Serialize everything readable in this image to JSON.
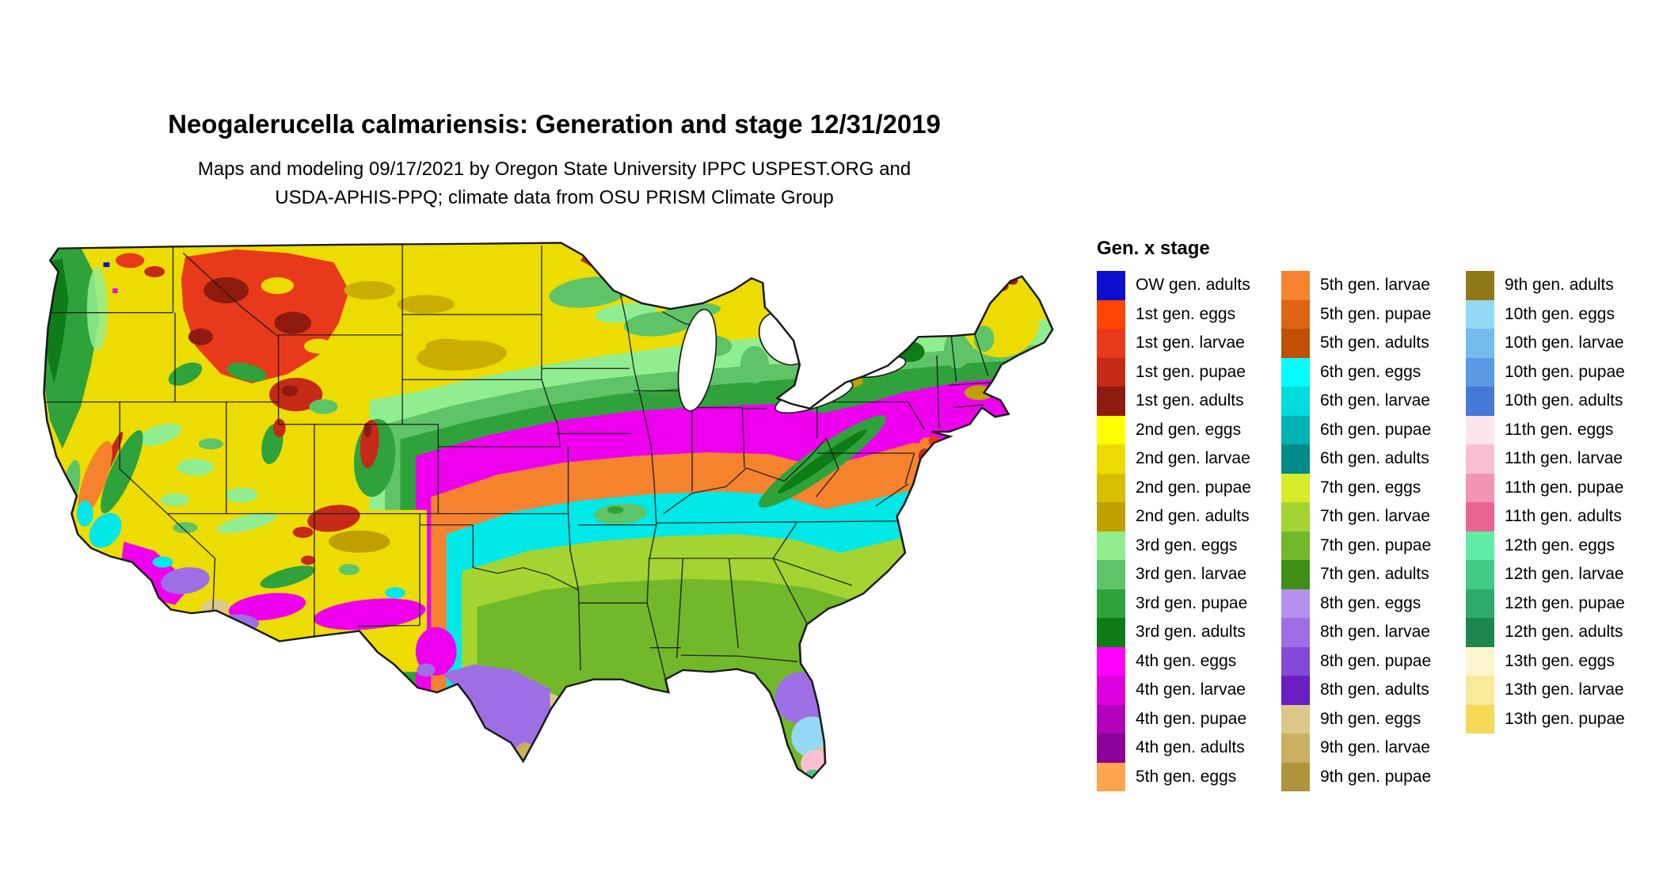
{
  "title": "Neogalerucella calmariensis: Generation and stage 12/31/2019",
  "subtitle_line1": "Maps and modeling 09/17/2021 by Oregon State University IPPC USPEST.ORG and",
  "subtitle_line2": "USDA-APHIS-PPQ; climate data from OSU PRISM Climate Group",
  "legend": {
    "title": "Gen. x stage",
    "columns": [
      {
        "entries": [
          {
            "label": "OW gen. adults",
            "color": "#0D0DCE"
          },
          {
            "label": "1st gen. eggs",
            "color": "#FF4500"
          },
          {
            "label": "1st gen. larvae",
            "color": "#E8391B"
          },
          {
            "label": "1st gen. pupae",
            "color": "#C52A16"
          },
          {
            "label": "1st gen. adults",
            "color": "#8F1A10"
          },
          {
            "label": "2nd gen. eggs",
            "color": "#FFFF00"
          },
          {
            "label": "2nd gen. larvae",
            "color": "#EDDC00"
          },
          {
            "label": "2nd gen. pupae",
            "color": "#D8BE00"
          },
          {
            "label": "2nd gen. adults",
            "color": "#C0A000"
          },
          {
            "label": "3rd gen. eggs",
            "color": "#90EE90"
          },
          {
            "label": "3rd gen. larvae",
            "color": "#5FC468"
          },
          {
            "label": "3rd gen. pupae",
            "color": "#2FA23C"
          },
          {
            "label": "3rd gen. adults",
            "color": "#0E7D18"
          },
          {
            "label": "4th gen. eggs",
            "color": "#FF00FF"
          },
          {
            "label": "4th gen. larvae",
            "color": "#DD00DD"
          },
          {
            "label": "4th gen. pupae",
            "color": "#B300BB"
          },
          {
            "label": "4th gen. adults",
            "color": "#8B0096"
          },
          {
            "label": "5th gen. eggs",
            "color": "#FFA54F"
          }
        ]
      },
      {
        "entries": [
          {
            "label": "5th gen. larvae",
            "color": "#F5832E"
          },
          {
            "label": "5th gen. pupae",
            "color": "#DE6414"
          },
          {
            "label": "5th gen. adults",
            "color": "#C14E05"
          },
          {
            "label": "6th gen. eggs",
            "color": "#00FFFF"
          },
          {
            "label": "6th gen. larvae",
            "color": "#00DBDB"
          },
          {
            "label": "6th gen. pupae",
            "color": "#00B3B3"
          },
          {
            "label": "6th gen. adults",
            "color": "#008B8B"
          },
          {
            "label": "7th gen. eggs",
            "color": "#D6EC2A"
          },
          {
            "label": "7th gen. larvae",
            "color": "#A3D432"
          },
          {
            "label": "7th gen. pupae",
            "color": "#71B82A"
          },
          {
            "label": "7th gen. adults",
            "color": "#3F8F14"
          },
          {
            "label": "8th gen. eggs",
            "color": "#B591EE"
          },
          {
            "label": "8th gen. larvae",
            "color": "#9E6FE4"
          },
          {
            "label": "8th gen. pupae",
            "color": "#8449D6"
          },
          {
            "label": "8th gen. adults",
            "color": "#6A1EC4"
          },
          {
            "label": "9th gen. eggs",
            "color": "#DCC98A"
          },
          {
            "label": "9th gen. larvae",
            "color": "#C9B061"
          },
          {
            "label": "9th gen. pupae",
            "color": "#AE953B"
          }
        ]
      },
      {
        "entries": [
          {
            "label": "9th gen. adults",
            "color": "#8F7818"
          },
          {
            "label": "10th gen. eggs",
            "color": "#93D9F5"
          },
          {
            "label": "10th gen. larvae",
            "color": "#74BBEE"
          },
          {
            "label": "10th gen. pupae",
            "color": "#5B99E4"
          },
          {
            "label": "10th gen. adults",
            "color": "#4678D8"
          },
          {
            "label": "11th gen. eggs",
            "color": "#FCE6EE"
          },
          {
            "label": "11th gen. larvae",
            "color": "#FAC0D2"
          },
          {
            "label": "11th gen. pupae",
            "color": "#F494B4"
          },
          {
            "label": "11th gen. adults",
            "color": "#EA6490"
          },
          {
            "label": "12th gen. eggs",
            "color": "#5FEBA5"
          },
          {
            "label": "12th gen. larvae",
            "color": "#41CB83"
          },
          {
            "label": "12th gen. pupae",
            "color": "#2CAA67"
          },
          {
            "label": "12th gen. adults",
            "color": "#1D864F"
          },
          {
            "label": "13th gen. eggs",
            "color": "#FCF5CF"
          },
          {
            "label": "13th gen. larvae",
            "color": "#F9EA9A"
          },
          {
            "label": "13th gen. pupae",
            "color": "#F5D957"
          }
        ]
      }
    ]
  },
  "map": {
    "colors": {
      "base": "#EDDC00",
      "amber": "#C0A000",
      "amber2": "#C9AE00",
      "red": "#E8391B",
      "red_mid": "#C52A16",
      "red_dark": "#8F1A10",
      "blue_ow": "#0D0DCE",
      "green_pale": "#90EE90",
      "green_mid": "#5FC468",
      "green": "#2FA23C",
      "green_dark": "#0E7D18",
      "magenta": "#EE00EE",
      "orange": "#F5832E",
      "cyan": "#00E8E8",
      "yellowgreen": "#A3D432",
      "yellowgreen_dark": "#71B82A",
      "purple": "#9E6FE4",
      "tan": "#DCC98A",
      "khaki": "#C9B061",
      "sky": "#93D9F5",
      "pink": "#FAC0D2",
      "seagreen": "#41CB83",
      "lake": "#FFFFFF",
      "boundary": "#1A1A1A"
    }
  }
}
